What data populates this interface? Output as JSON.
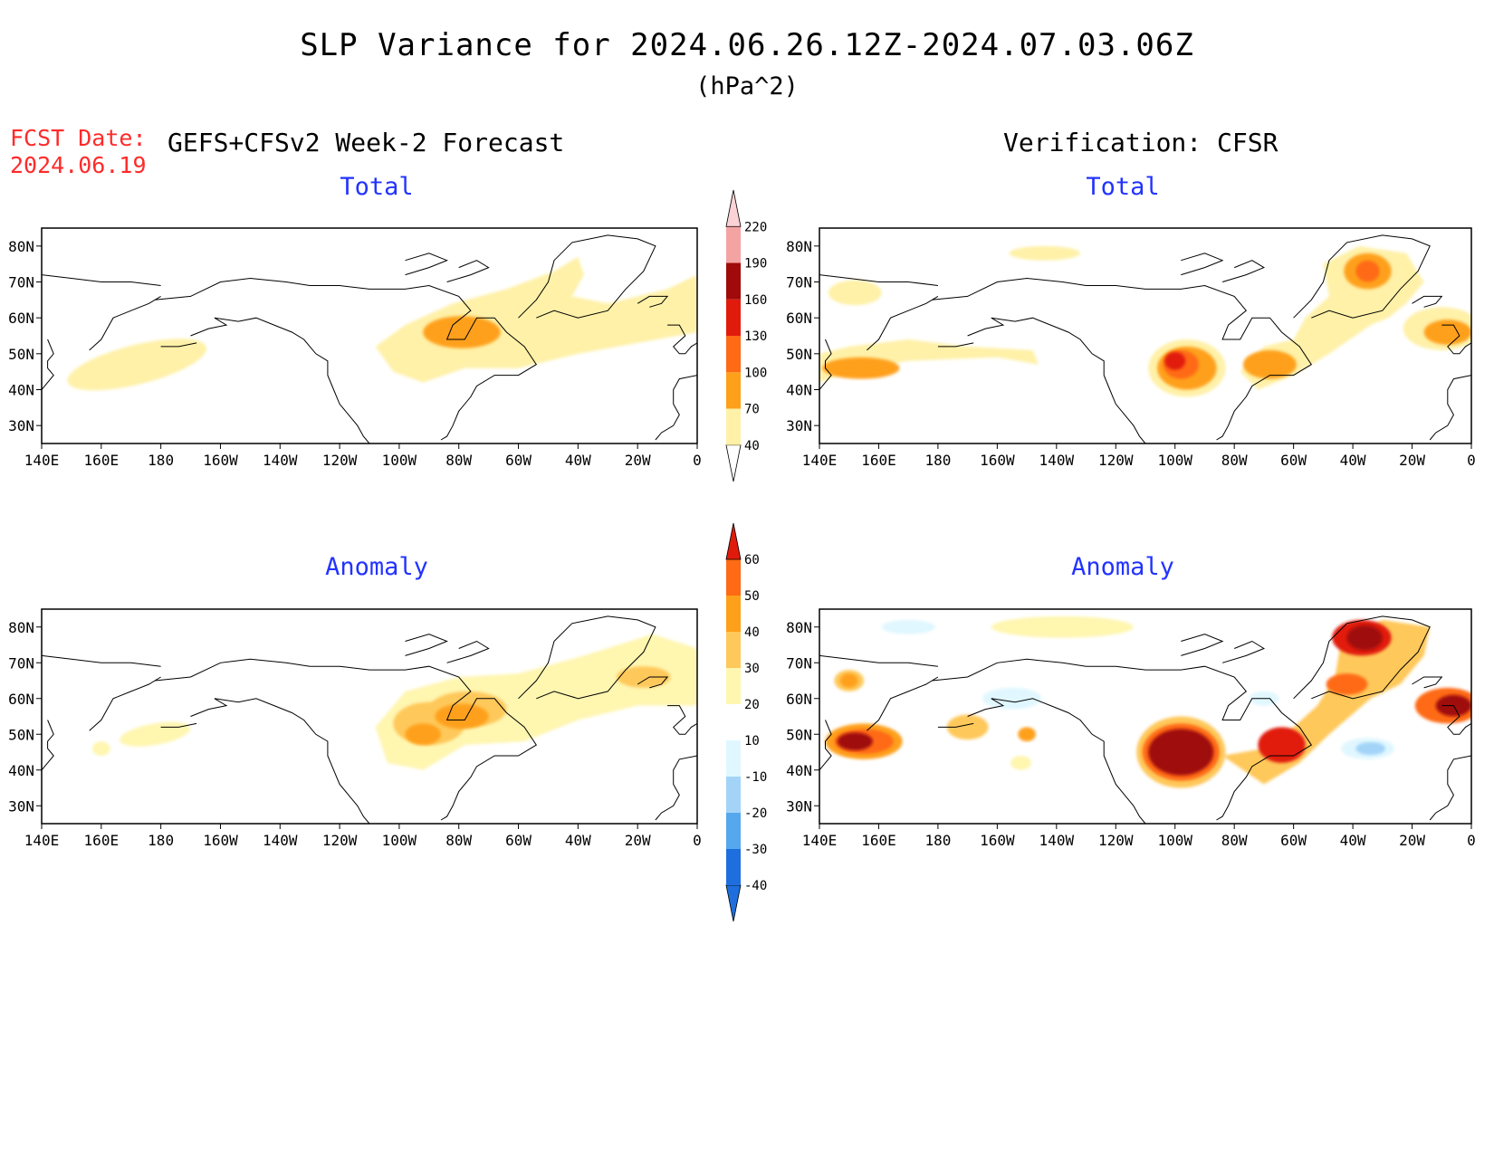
{
  "title": "SLP Variance for 2024.06.26.12Z-2024.07.03.06Z",
  "units": "(hPa^2)",
  "fcst_date_label": "FCST Date:",
  "fcst_date": "2024.06.19",
  "left_header": "GEFS+CFSv2 Week-2 Forecast",
  "right_header": "Verification: CFSR",
  "panel_titles": {
    "top": "Total",
    "bottom": "Anomaly"
  },
  "lat_labels": [
    "80N",
    "70N",
    "60N",
    "50N",
    "40N",
    "30N"
  ],
  "lon_labels": [
    "140E",
    "160E",
    "180",
    "160W",
    "140W",
    "120W",
    "100W",
    "80W",
    "60W",
    "40W",
    "20W",
    "0"
  ],
  "colors": {
    "total": [
      "#fff1a8",
      "#ffa01a",
      "#ff6a14",
      "#e11b0c",
      "#a00a0a",
      "#f4a3a3",
      "#fbd3d6"
    ],
    "anomaly_pos": [
      "#fff6b0",
      "#ffc85a",
      "#ffa01a",
      "#ff6a14",
      "#e11b0c",
      "#a00a0a"
    ],
    "anomaly_neg": [
      "#e0f7ff",
      "#a3d4f8",
      "#56a8ee",
      "#1e6fdd"
    ]
  },
  "chart_data": [
    {
      "type": "colorbar",
      "name": "total",
      "levels": [
        40,
        70,
        100,
        130,
        160,
        190,
        220
      ]
    },
    {
      "type": "colorbar",
      "name": "anomaly",
      "levels": [
        -40,
        -30,
        -20,
        -10,
        10,
        20,
        30,
        40,
        50,
        60
      ]
    }
  ]
}
